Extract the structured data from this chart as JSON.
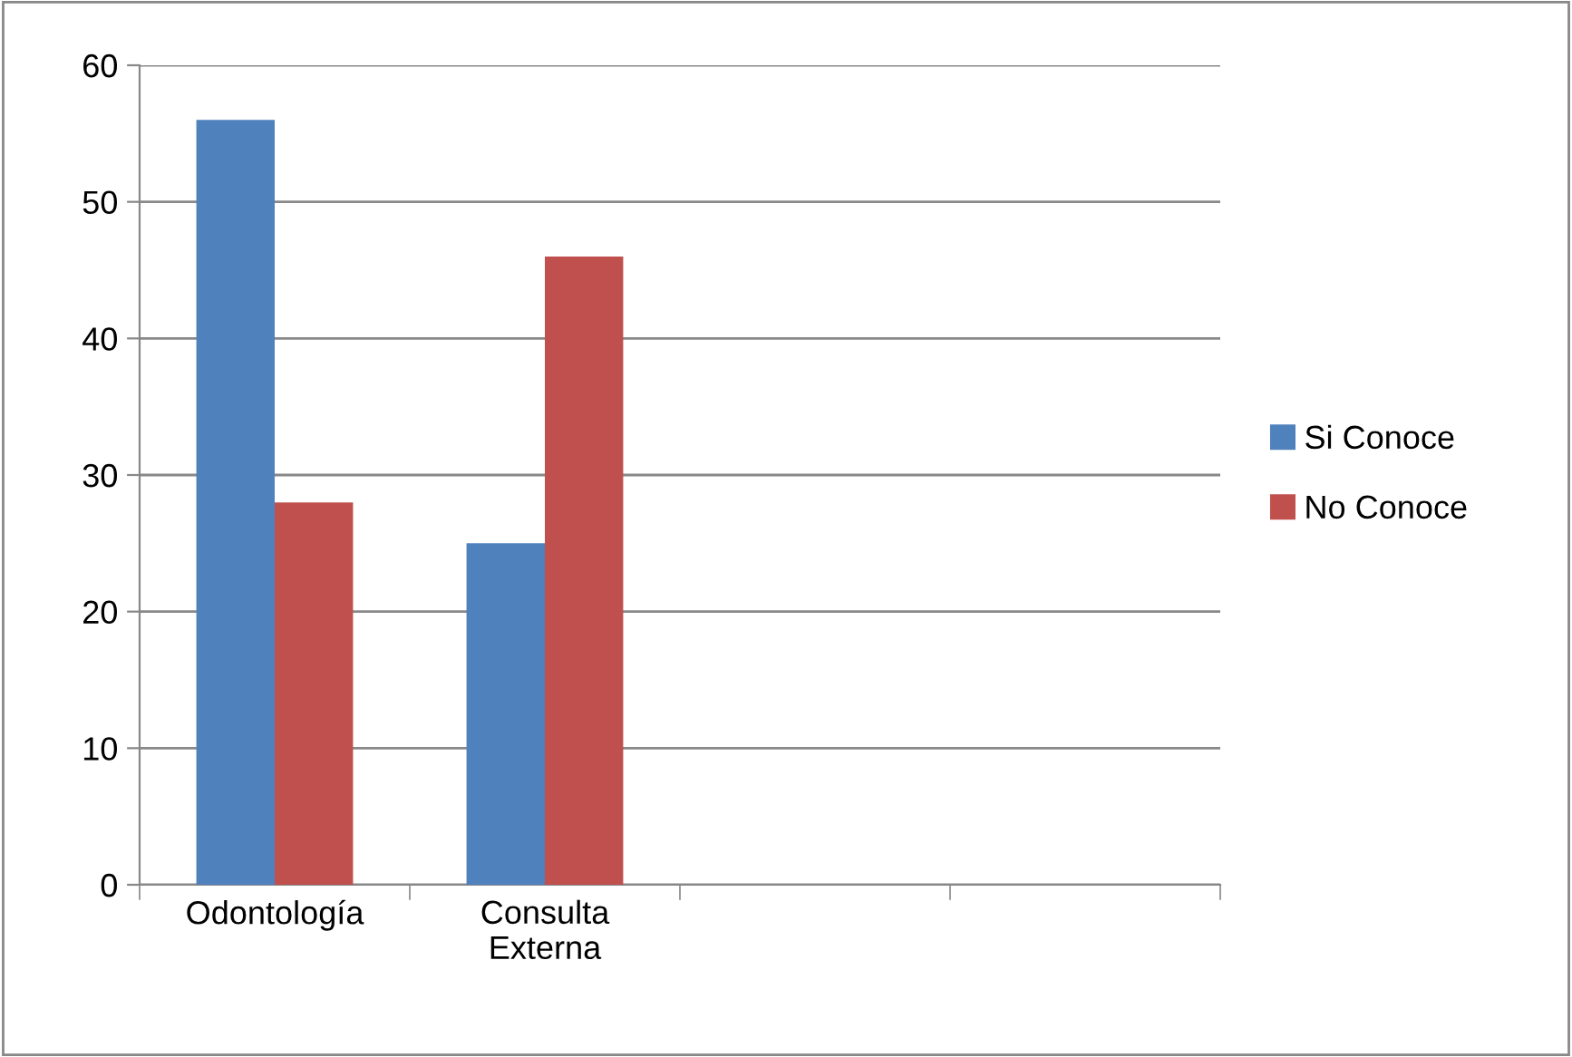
{
  "chart_data": {
    "type": "bar",
    "categories": [
      "Odontología",
      "Consulta\nExterna",
      null,
      null
    ],
    "series": [
      {
        "name": "Si Conoce",
        "color": "#4f81bd",
        "values": [
          56,
          25,
          null,
          null
        ]
      },
      {
        "name": "No Conoce",
        "color": "#c0504d",
        "values": [
          28,
          46,
          null,
          null
        ]
      }
    ],
    "ylim": [
      0,
      60
    ],
    "yticks": [
      0,
      10,
      20,
      30,
      40,
      50,
      60
    ],
    "grid": "y",
    "legend": "right"
  }
}
